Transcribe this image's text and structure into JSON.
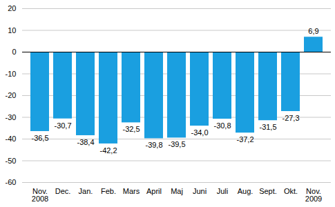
{
  "chart_data": {
    "type": "bar",
    "categories": [
      "Nov.\n2008",
      "Dec.",
      "Jan.",
      "Feb.",
      "Mars",
      "April",
      "Maj",
      "Juni",
      "Juli",
      "Aug.",
      "Sept.",
      "Okt.",
      "Nov.\n2009"
    ],
    "values": [
      -36.5,
      -30.7,
      -38.4,
      -42.2,
      -32.5,
      -39.8,
      -39.5,
      -34.0,
      -30.8,
      -37.2,
      -31.5,
      -27.3,
      6.9
    ],
    "value_labels": [
      "-36,5",
      "-30,7",
      "-38,4",
      "-42,2",
      "-32,5",
      "-39,8",
      "-39,5",
      "-34,0",
      "-30,8",
      "-37,2",
      "-31,5",
      "-27,3",
      "6,9"
    ],
    "color": "#1a9fe0",
    "ylim": [
      -60,
      20
    ],
    "yticks": [
      -60,
      -50,
      -40,
      -30,
      -20,
      -10,
      0,
      10,
      20
    ],
    "grid": true,
    "data_labels": true
  }
}
